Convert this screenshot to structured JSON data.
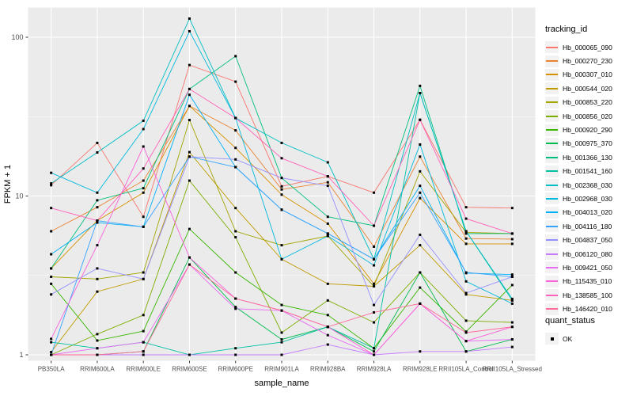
{
  "chart_data": {
    "type": "line",
    "title": "",
    "xlabel": "sample_name",
    "ylabel": "FPKM + 1",
    "y_scale": "log10",
    "ylim": [
      1,
      140
    ],
    "y_ticks": [
      1,
      10,
      100
    ],
    "y_minor_ticks": [
      3.162,
      31.62
    ],
    "grid": "on",
    "panel_bg": "#ebebeb",
    "grid_color": "#ffffff",
    "tick_color": "#333333",
    "tick_label_color": "#4d4d4d",
    "point_marker": "black-square",
    "point_color": "#000000",
    "categories": [
      "PB350LA",
      "RRIM600LA",
      "RRIM600LE",
      "RRIM600SE",
      "RRIM600PE",
      "RRIM901LA",
      "RRIM928BA",
      "RRIM928LA",
      "RRIM928LE",
      "RRII105LA_Control",
      "RRII105LA_Stressed"
    ],
    "legend": {
      "title": "tracking_id",
      "position": "right"
    },
    "legend2": {
      "title": "quant_status",
      "items": [
        "OK"
      ]
    },
    "series": [
      {
        "name": "Hb_000065_090",
        "color": "#F8766D",
        "values": [
          11.7,
          21.6,
          7.4,
          66.8,
          52.5,
          11.5,
          13.3,
          10.5,
          30.2,
          8.5,
          8.4
        ]
      },
      {
        "name": "Hb_000270_230",
        "color": "#EA8331",
        "values": [
          6.0,
          8.5,
          12.5,
          36.9,
          25.9,
          11.0,
          12.2,
          4.8,
          17.7,
          5.4,
          5.35
        ]
      },
      {
        "name": "Hb_000307_010",
        "color": "#D89000",
        "values": [
          3.5,
          7.0,
          10.5,
          36.9,
          20.1,
          10.2,
          6.7,
          2.8,
          9.7,
          5.0,
          5.0
        ]
      },
      {
        "name": "Hb_000544_020",
        "color": "#C09B00",
        "values": [
          1.04,
          2.5,
          3.0,
          18.9,
          8.4,
          4.0,
          2.8,
          2.7,
          4.9,
          2.4,
          2.2
        ]
      },
      {
        "name": "Hb_000853_220",
        "color": "#A3A500",
        "values": [
          3.1,
          3.0,
          3.3,
          30.1,
          6.0,
          4.9,
          5.6,
          2.7,
          14.3,
          5.9,
          5.8
        ]
      },
      {
        "name": "Hb_000856_020",
        "color": "#7CAE00",
        "values": [
          1.0,
          1.35,
          1.78,
          12.5,
          5.5,
          1.38,
          2.2,
          1.6,
          3.3,
          1.64,
          1.6
        ]
      },
      {
        "name": "Hb_000920_290",
        "color": "#39B600",
        "values": [
          2.8,
          1.23,
          1.41,
          6.2,
          3.3,
          2.06,
          1.78,
          1.1,
          2.65,
          1.4,
          2.75
        ]
      },
      {
        "name": "Hb_000975_370",
        "color": "#00BB4E",
        "values": [
          1.0,
          1.0,
          1.05,
          4.1,
          2.0,
          1.25,
          1.5,
          1.05,
          3.3,
          1.05,
          1.25
        ]
      },
      {
        "name": "Hb_001366_130",
        "color": "#00BF7D",
        "values": [
          3.5,
          9.4,
          11.2,
          47.2,
          76.0,
          13.0,
          7.4,
          6.5,
          49.4,
          5.8,
          5.8
        ]
      },
      {
        "name": "Hb_001541_160",
        "color": "#00C1A3",
        "values": [
          1.2,
          1.1,
          1.2,
          1.0,
          1.1,
          1.2,
          1.5,
          1.1,
          44.5,
          6.0,
          2.2
        ]
      },
      {
        "name": "Hb_002368_030",
        "color": "#00BFC4",
        "values": [
          12.0,
          18.8,
          29.8,
          131.0,
          31.0,
          21.6,
          16.3,
          4.0,
          44.5,
          6.0,
          2.25
        ]
      },
      {
        "name": "Hb_002968_030",
        "color": "#00BADE",
        "values": [
          14.0,
          10.5,
          26.4,
          109.0,
          31.0,
          4.0,
          5.6,
          3.66,
          21.1,
          2.9,
          2.1
        ]
      },
      {
        "name": "Hb_004013_020",
        "color": "#00B0F6",
        "values": [
          4.3,
          6.8,
          6.4,
          43.4,
          15.2,
          8.2,
          5.8,
          4.0,
          11.6,
          3.27,
          3.2
        ]
      },
      {
        "name": "Hb_004116_180",
        "color": "#35A2FF",
        "values": [
          1.0,
          7.0,
          6.4,
          17.7,
          15.2,
          8.2,
          5.8,
          4.0,
          10.5,
          3.3,
          3.1
        ]
      },
      {
        "name": "Hb_004837_050",
        "color": "#9590FF",
        "values": [
          2.4,
          3.5,
          3.0,
          17.7,
          17.0,
          13.0,
          11.6,
          2.06,
          5.7,
          2.45,
          3.1
        ]
      },
      {
        "name": "Hb_006120_080",
        "color": "#C77CFF",
        "values": [
          1.0,
          1.0,
          1.0,
          1.0,
          1.0,
          1.0,
          1.16,
          1.0,
          1.05,
          1.05,
          1.12
        ]
      },
      {
        "name": "Hb_009421_050",
        "color": "#E76BF3",
        "values": [
          1.0,
          1.1,
          1.2,
          3.7,
          1.95,
          1.9,
          1.33,
          1.0,
          2.1,
          1.22,
          1.25
        ]
      },
      {
        "name": "Hb_115435_010",
        "color": "#FA62DB",
        "values": [
          1.26,
          4.9,
          20.5,
          4.1,
          2.26,
          1.9,
          1.5,
          1.0,
          2.1,
          1.22,
          1.5
        ]
      },
      {
        "name": "Hb_138585_100",
        "color": "#FF62BC",
        "values": [
          8.4,
          7.0,
          14.9,
          47.2,
          31.0,
          17.3,
          13.3,
          6.5,
          30.2,
          7.2,
          5.8
        ]
      },
      {
        "name": "Hb_146420_010",
        "color": "#FF6A98",
        "values": [
          1.0,
          1.0,
          1.05,
          3.7,
          2.26,
          1.9,
          1.5,
          1.85,
          2.1,
          1.38,
          1.5
        ]
      }
    ]
  }
}
